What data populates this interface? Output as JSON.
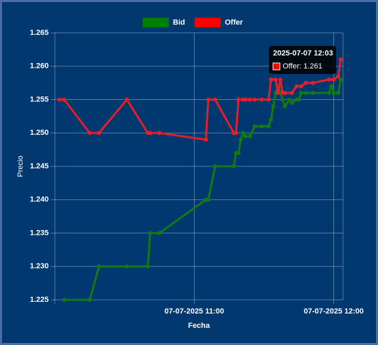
{
  "chart_data": {
    "type": "line",
    "series": [
      {
        "name": "Bid",
        "color": "#008000",
        "line_color": "#127a12",
        "x": [
          "2025-07-07 10:04",
          "2025-07-07 10:15",
          "2025-07-07 10:19",
          "2025-07-07 10:31",
          "2025-07-07 10:40",
          "2025-07-07 10:41",
          "2025-07-07 10:45",
          "2025-07-07 11:05",
          "2025-07-07 11:06",
          "2025-07-07 11:09",
          "2025-07-07 11:17",
          "2025-07-07 11:18",
          "2025-07-07 11:19",
          "2025-07-07 11:20",
          "2025-07-07 11:21",
          "2025-07-07 11:22",
          "2025-07-07 11:24",
          "2025-07-07 11:26",
          "2025-07-07 11:29",
          "2025-07-07 11:32",
          "2025-07-07 11:33",
          "2025-07-07 11:34",
          "2025-07-07 11:35",
          "2025-07-07 11:36",
          "2025-07-07 11:37",
          "2025-07-07 11:38",
          "2025-07-07 11:39",
          "2025-07-07 11:41",
          "2025-07-07 11:42",
          "2025-07-07 11:44",
          "2025-07-07 11:45",
          "2025-07-07 11:46",
          "2025-07-07 11:48",
          "2025-07-07 11:51",
          "2025-07-07 11:58",
          "2025-07-07 11:59",
          "2025-07-07 12:00",
          "2025-07-07 12:02",
          "2025-07-07 12:03"
        ],
        "values": [
          1.225,
          1.225,
          1.23,
          1.23,
          1.23,
          1.235,
          1.235,
          1.24,
          1.24,
          1.245,
          1.245,
          1.247,
          1.247,
          1.249,
          1.25,
          1.2495,
          1.2495,
          1.251,
          1.251,
          1.251,
          1.252,
          1.254,
          1.256,
          1.257,
          1.256,
          1.255,
          1.254,
          1.255,
          1.2545,
          1.255,
          1.255,
          1.256,
          1.256,
          1.256,
          1.256,
          1.257,
          1.256,
          1.256,
          1.258
        ]
      },
      {
        "name": "Offer",
        "color": "#ff0000",
        "line_color": "#e3202a",
        "x": [
          "2025-07-07 10:02",
          "2025-07-07 10:04",
          "2025-07-07 10:15",
          "2025-07-07 10:19",
          "2025-07-07 10:31",
          "2025-07-07 10:40",
          "2025-07-07 10:41",
          "2025-07-07 10:45",
          "2025-07-07 11:05",
          "2025-07-07 11:06",
          "2025-07-07 11:09",
          "2025-07-07 11:17",
          "2025-07-07 11:18",
          "2025-07-07 11:19",
          "2025-07-07 11:21",
          "2025-07-07 11:22",
          "2025-07-07 11:24",
          "2025-07-07 11:26",
          "2025-07-07 11:29",
          "2025-07-07 11:32",
          "2025-07-07 11:33",
          "2025-07-07 11:35",
          "2025-07-07 11:36",
          "2025-07-07 11:37",
          "2025-07-07 11:38",
          "2025-07-07 11:39",
          "2025-07-07 11:42",
          "2025-07-07 11:44",
          "2025-07-07 11:46",
          "2025-07-07 11:48",
          "2025-07-07 11:51",
          "2025-07-07 11:58",
          "2025-07-07 12:00",
          "2025-07-07 12:02",
          "2025-07-07 12:03"
        ],
        "values": [
          1.255,
          1.255,
          1.25,
          1.25,
          1.255,
          1.25,
          1.25,
          1.25,
          1.249,
          1.255,
          1.255,
          1.25,
          1.25,
          1.255,
          1.255,
          1.255,
          1.255,
          1.255,
          1.255,
          1.255,
          1.258,
          1.258,
          1.256,
          1.258,
          1.256,
          1.256,
          1.256,
          1.257,
          1.257,
          1.2575,
          1.2575,
          1.258,
          1.258,
          1.2585,
          1.261
        ]
      }
    ],
    "xlim": [
      "2025-07-07 10:00",
      "2025-07-07 12:04"
    ],
    "xticks": [
      {
        "value": "2025-07-07 11:00",
        "label": "07-07-2025 11:00"
      },
      {
        "value": "2025-07-07 12:00",
        "label": "07-07-2025 12:00"
      }
    ],
    "ylim": [
      1.225,
      1.265
    ],
    "yticks": [
      1.225,
      {
        "value": 1.23,
        "label": "1.230"
      },
      1.235,
      {
        "value": 1.24,
        "label": "1.240"
      },
      1.245,
      {
        "value": 1.25,
        "label": "1.250"
      },
      1.255,
      {
        "value": 1.26,
        "label": "1.260"
      },
      1.265
    ],
    "xlabel": "Fecha",
    "ylabel": "Precio",
    "grid": true,
    "legend": "top",
    "tooltip": {
      "title": "2025-07-07 12:03",
      "label": "Offer: 1.261"
    }
  }
}
